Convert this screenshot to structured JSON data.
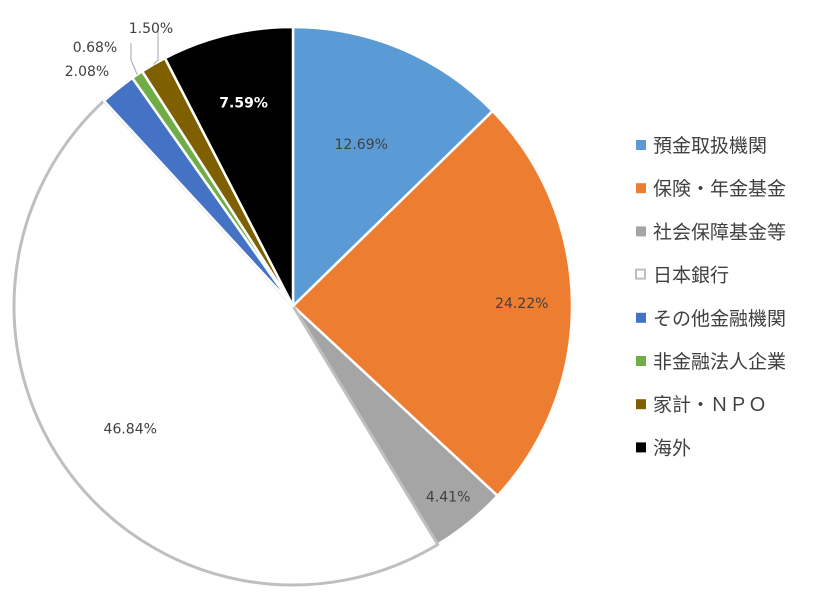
{
  "chart_data": {
    "type": "pie",
    "title": "",
    "legend_position": "right",
    "series": [
      {
        "slices": [
          {
            "label": "預金取扱機関",
            "value": 12.69,
            "value_label": "12.69%",
            "color": "#5B9BD5"
          },
          {
            "label": "保険・年金基金",
            "value": 24.22,
            "value_label": "24.22%",
            "color": "#ED7D31"
          },
          {
            "label": "社会保障基金等",
            "value": 4.41,
            "value_label": "4.41%",
            "color": "#A5A5A5"
          },
          {
            "label": "日本銀行",
            "value": 46.84,
            "value_label": "46.84%",
            "color": "#FFFFFF",
            "outline": "#BFBFBF"
          },
          {
            "label": "その他金融機関",
            "value": 2.08,
            "value_label": "2.08%",
            "color": "#4472C4"
          },
          {
            "label": "非金融法人企業",
            "value": 0.68,
            "value_label": "0.68%",
            "color": "#70AD47"
          },
          {
            "label": "家計・ＮＰＯ",
            "value": 1.5,
            "value_label": "1.50%",
            "color": "#7F6000"
          },
          {
            "label": "海外",
            "value": 7.59,
            "value_label": "7.59%",
            "color": "#000000",
            "label_color": "#FFFFFF"
          }
        ]
      }
    ]
  }
}
